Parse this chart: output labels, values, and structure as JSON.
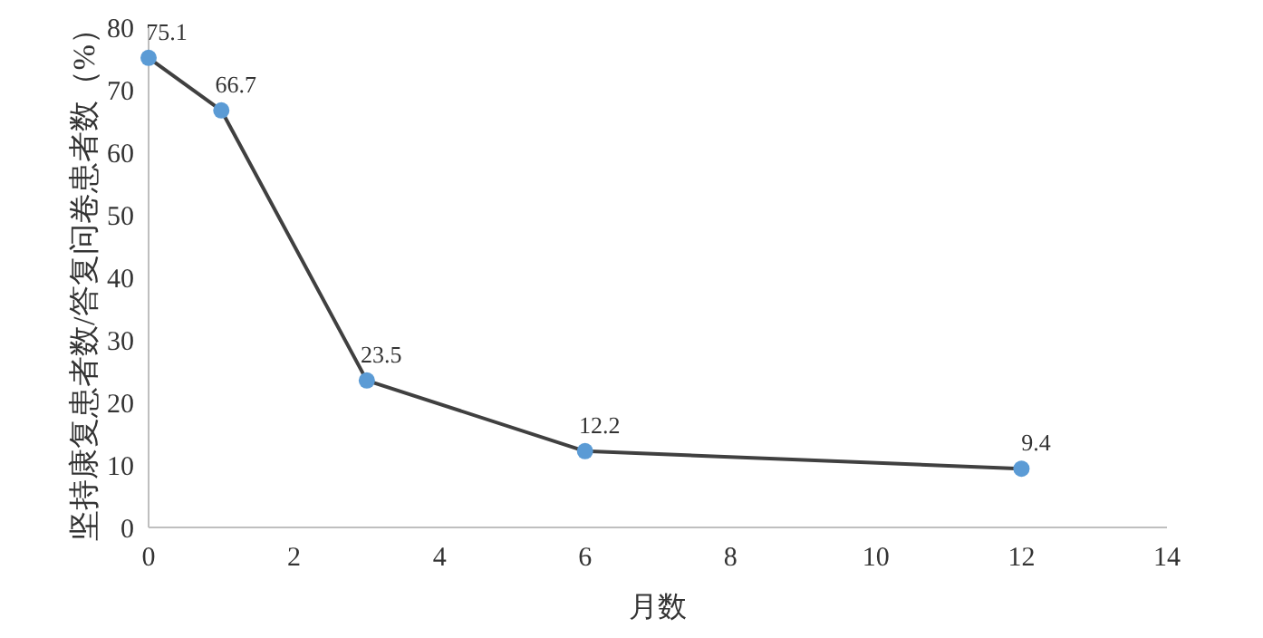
{
  "chart_data": {
    "type": "line",
    "xlabel": "月数",
    "ylabel": "坚持康复患者数/答复问卷患者数（%）",
    "x": [
      0,
      1,
      3,
      6,
      12
    ],
    "series": [
      {
        "color": "#404040",
        "values": [
          75.1,
          66.7,
          23.5,
          12.2,
          9.4
        ]
      }
    ],
    "xlim": [
      0,
      14
    ],
    "xticks": [
      0,
      2,
      4,
      6,
      8,
      10,
      12,
      14
    ],
    "ylim": [
      0,
      80
    ],
    "yticks": [
      0,
      10,
      20,
      30,
      40,
      50,
      60,
      70,
      80
    ],
    "marker": "circle",
    "grid": false,
    "data_labels": true
  }
}
